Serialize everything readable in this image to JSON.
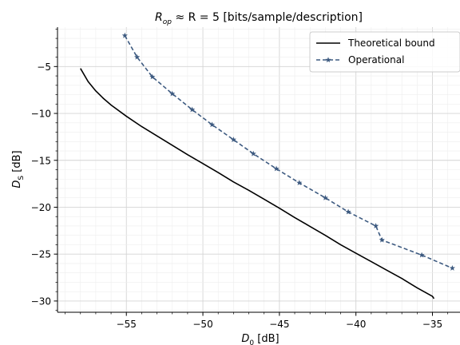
{
  "chart_data": {
    "type": "line",
    "title": "R_op ≈ R = 5 [bits/sample/description]",
    "title_parts": {
      "r": "R",
      "op": "op",
      "rest": " ≈ R = 5 [bits/sample/description]"
    },
    "xlabel": "D_0 [dB]",
    "xlabel_parts": {
      "main": "D",
      "sub": "0",
      "rest": " [dB]"
    },
    "ylabel": "D_S [dB]",
    "ylabel_parts": {
      "main": "D",
      "sub": "S",
      "rest": " [dB]"
    },
    "xlim": [
      -59.5,
      -33.2
    ],
    "ylim": [
      -31.2,
      -0.8
    ],
    "xticks": [
      -55,
      -50,
      -45,
      -40,
      -35
    ],
    "xtick_labels": [
      "−55",
      "−50",
      "−45",
      "−40",
      "−35"
    ],
    "yticks": [
      -5,
      -10,
      -15,
      -20,
      -25,
      -30
    ],
    "ytick_labels": [
      "−5",
      "−10",
      "−15",
      "−20",
      "−25",
      "−30"
    ],
    "grid": true,
    "legend_position": "top-right",
    "series": [
      {
        "name": "Theoretical bound",
        "color": "#000000",
        "style": "solid",
        "marker": "none",
        "x": [
          -58.0,
          -57.5,
          -57.0,
          -56.5,
          -56.0,
          -55.0,
          -54.0,
          -53.0,
          -52.0,
          -51.0,
          -50.0,
          -49.0,
          -48.0,
          -47.0,
          -46.0,
          -45.0,
          -44.0,
          -43.0,
          -42.0,
          -41.0,
          -40.0,
          -39.0,
          -38.0,
          -37.0,
          -36.0,
          -35.0,
          -34.9
        ],
        "y": [
          -5.2,
          -6.6,
          -7.6,
          -8.4,
          -9.1,
          -10.3,
          -11.4,
          -12.4,
          -13.4,
          -14.4,
          -15.35,
          -16.3,
          -17.3,
          -18.2,
          -19.15,
          -20.1,
          -21.1,
          -22.05,
          -23.0,
          -24.0,
          -24.9,
          -25.8,
          -26.7,
          -27.6,
          -28.6,
          -29.5,
          -29.75
        ]
      },
      {
        "name": "Operational",
        "color": "#3d5a80",
        "style": "dashed",
        "marker": "star",
        "x": [
          -55.1,
          -54.3,
          -53.3,
          -52.0,
          -50.7,
          -49.4,
          -48.0,
          -46.7,
          -45.2,
          -43.7,
          -42.0,
          -40.5,
          -38.7,
          -38.3,
          -35.7,
          -33.7
        ],
        "y": [
          -1.7,
          -4.0,
          -6.1,
          -7.9,
          -9.6,
          -11.2,
          -12.8,
          -14.3,
          -15.9,
          -17.4,
          -19.0,
          -20.5,
          -22.0,
          -23.5,
          -25.1,
          -26.5
        ]
      }
    ]
  }
}
